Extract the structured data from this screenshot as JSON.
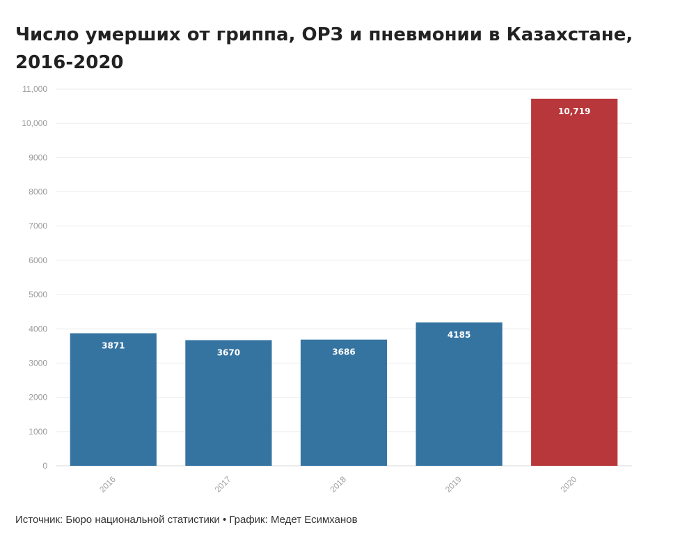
{
  "chart_data": {
    "type": "bar",
    "title": "Число умерших от гриппа, ОРЗ и пневмонии в Казахстане, 2016-2020",
    "categories": [
      "2016",
      "2017",
      "2018",
      "2019",
      "2020"
    ],
    "values": [
      3871,
      3670,
      3686,
      4185,
      10719
    ],
    "value_labels": [
      "3871",
      "3670",
      "3686",
      "4185",
      "10,719"
    ],
    "bar_colors": [
      "#3574a1",
      "#3574a1",
      "#3574a1",
      "#3574a1",
      "#b7373a"
    ],
    "ylim": [
      0,
      11000
    ],
    "yticks": [
      0,
      1000,
      2000,
      3000,
      4000,
      5000,
      6000,
      7000,
      8000,
      9000,
      10000,
      11000
    ],
    "ytick_labels": [
      "0",
      "1000",
      "2000",
      "3000",
      "4000",
      "5000",
      "6000",
      "7000",
      "8000",
      "9000",
      "10,000",
      "11,000"
    ],
    "grid": true,
    "xlabel": "",
    "ylabel": "",
    "source": "Источник: Бюро национальной статистики • График: Медет Есимханов"
  }
}
